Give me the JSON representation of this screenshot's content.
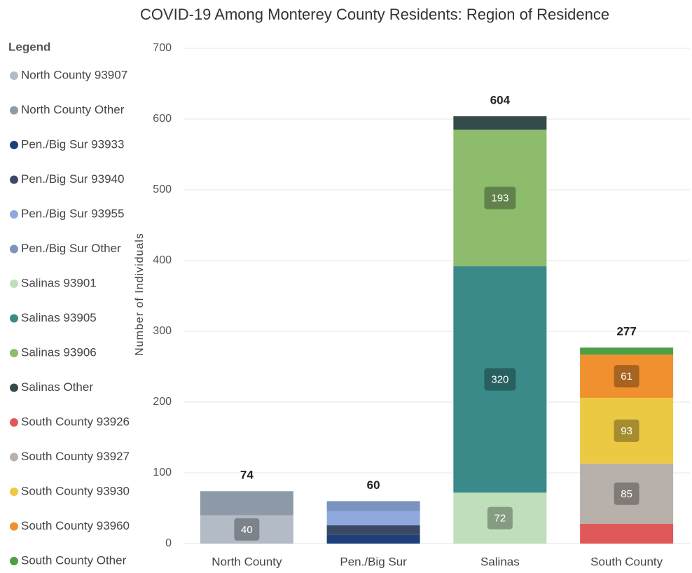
{
  "chart_data": {
    "type": "stacked_bar",
    "title": "COVID-19 Among Monterey County Residents: Region of Residence",
    "y_label": "Number of Individuals",
    "legend_title": "Legend",
    "categories": [
      "North County",
      "Pen./Big Sur",
      "Salinas",
      "South County"
    ],
    "totals": [
      74,
      60,
      604,
      277
    ],
    "series": [
      {
        "name": "North County 93907",
        "color": "#b3bcc6",
        "values": [
          40,
          null,
          null,
          null
        ],
        "value_labels": [
          40,
          null,
          null,
          null
        ]
      },
      {
        "name": "North County Other",
        "color": "#8e9aa8",
        "values": [
          34,
          null,
          null,
          null
        ]
      },
      {
        "name": "Pen./Big Sur 93933",
        "color": "#1f3f7a",
        "values": [
          null,
          12,
          null,
          null
        ]
      },
      {
        "name": "Pen./Big Sur 93940",
        "color": "#3a4a66",
        "values": [
          null,
          14,
          null,
          null
        ]
      },
      {
        "name": "Pen./Big Sur 93955",
        "color": "#8fa9e0",
        "values": [
          null,
          20,
          null,
          null
        ]
      },
      {
        "name": "Pen./Big Sur Other",
        "color": "#7a93bf",
        "values": [
          null,
          14,
          null,
          null
        ]
      },
      {
        "name": "Salinas 93901",
        "color": "#bfdfbb",
        "values": [
          null,
          null,
          72,
          null
        ],
        "value_labels": [
          null,
          null,
          72,
          null
        ]
      },
      {
        "name": "Salinas 93905",
        "color": "#3a8a8a",
        "values": [
          null,
          null,
          320,
          null
        ],
        "value_labels": [
          null,
          null,
          320,
          null
        ]
      },
      {
        "name": "Salinas 93906",
        "color": "#8cbc6c",
        "values": [
          null,
          null,
          193,
          null
        ],
        "value_labels": [
          null,
          null,
          193,
          null
        ]
      },
      {
        "name": "Salinas Other",
        "color": "#344b4b",
        "values": [
          null,
          null,
          19,
          null
        ]
      },
      {
        "name": "South County 93926",
        "color": "#e05858",
        "values": [
          null,
          null,
          null,
          28
        ]
      },
      {
        "name": "South County 93927",
        "color": "#b8b0aa",
        "values": [
          null,
          null,
          null,
          85
        ],
        "value_labels": [
          null,
          null,
          null,
          85
        ]
      },
      {
        "name": "South County 93930",
        "color": "#ecc943",
        "values": [
          null,
          null,
          null,
          93
        ],
        "value_labels": [
          null,
          null,
          null,
          93
        ]
      },
      {
        "name": "South County 93960",
        "color": "#f0902e",
        "values": [
          null,
          null,
          null,
          61
        ],
        "value_labels": [
          null,
          null,
          null,
          61
        ]
      },
      {
        "name": "South County Other",
        "color": "#4e9e44",
        "values": [
          null,
          null,
          null,
          10
        ]
      }
    ],
    "ylim": [
      0,
      700
    ],
    "yticks": [
      0,
      100,
      200,
      300,
      400,
      500,
      600,
      700
    ],
    "grid": true,
    "legend": "left"
  }
}
